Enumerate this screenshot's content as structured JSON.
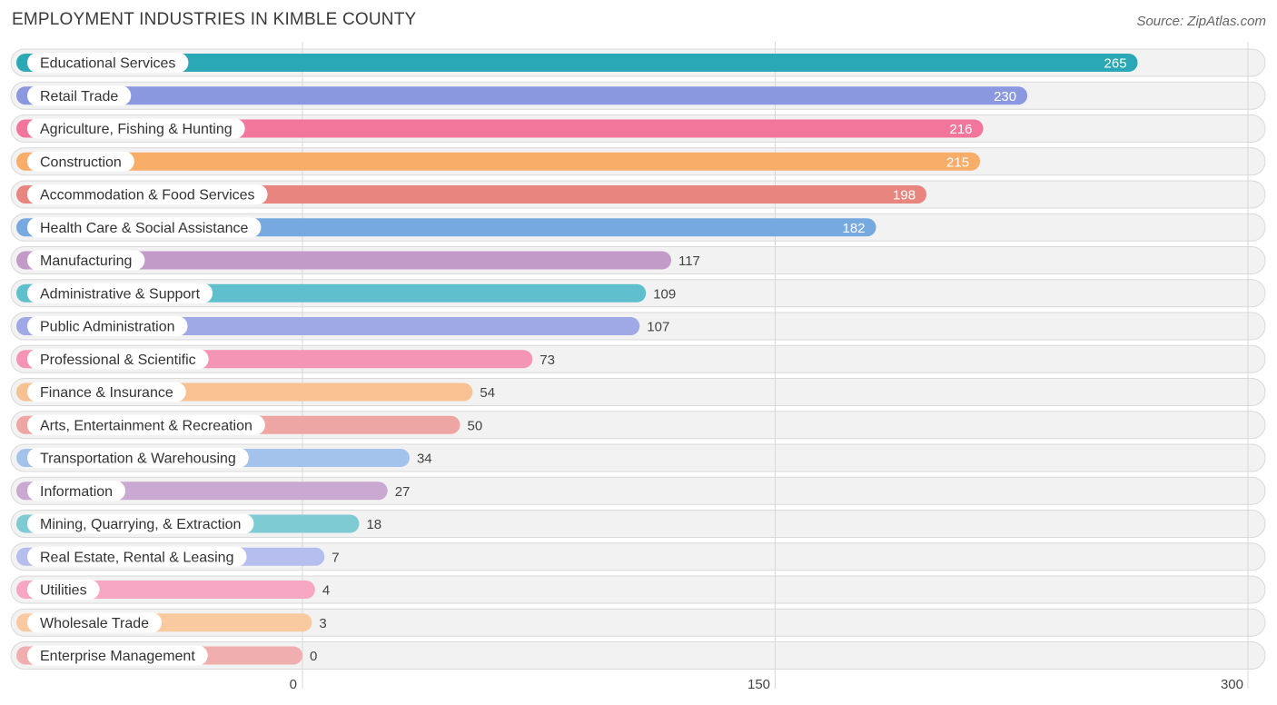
{
  "chart_data": {
    "type": "bar",
    "orientation": "horizontal",
    "title": "EMPLOYMENT INDUSTRIES IN KIMBLE COUNTY",
    "source": "Source: ZipAtlas.com",
    "xlim": [
      0,
      300
    ],
    "ticks": [
      0,
      150,
      300
    ],
    "tick_labels": [
      "0",
      "150",
      "300"
    ],
    "grid": true,
    "categories": [
      "Educational Services",
      "Retail Trade",
      "Agriculture, Fishing & Hunting",
      "Construction",
      "Accommodation & Food Services",
      "Health Care & Social Assistance",
      "Manufacturing",
      "Administrative & Support",
      "Public Administration",
      "Professional & Scientific",
      "Finance & Insurance",
      "Arts, Entertainment & Recreation",
      "Transportation & Warehousing",
      "Information",
      "Mining, Quarrying, & Extraction",
      "Real Estate, Rental & Leasing",
      "Utilities",
      "Wholesale Trade",
      "Enterprise Management"
    ],
    "values": [
      265,
      230,
      216,
      215,
      198,
      182,
      117,
      109,
      107,
      73,
      54,
      50,
      34,
      27,
      18,
      7,
      4,
      3,
      0
    ],
    "colors": [
      "#2aa8b5",
      "#8a98e0",
      "#f2769c",
      "#f8ad68",
      "#e8857f",
      "#76a9e0",
      "#c39bc9",
      "#5fbfcc",
      "#9ea9e6",
      "#f595b6",
      "#f8c191",
      "#eea6a4",
      "#a3c3ec",
      "#c9a8d2",
      "#7ecbd3",
      "#b6beef",
      "#f7a6c3",
      "#f9c9a0",
      "#f0aeae"
    ]
  }
}
